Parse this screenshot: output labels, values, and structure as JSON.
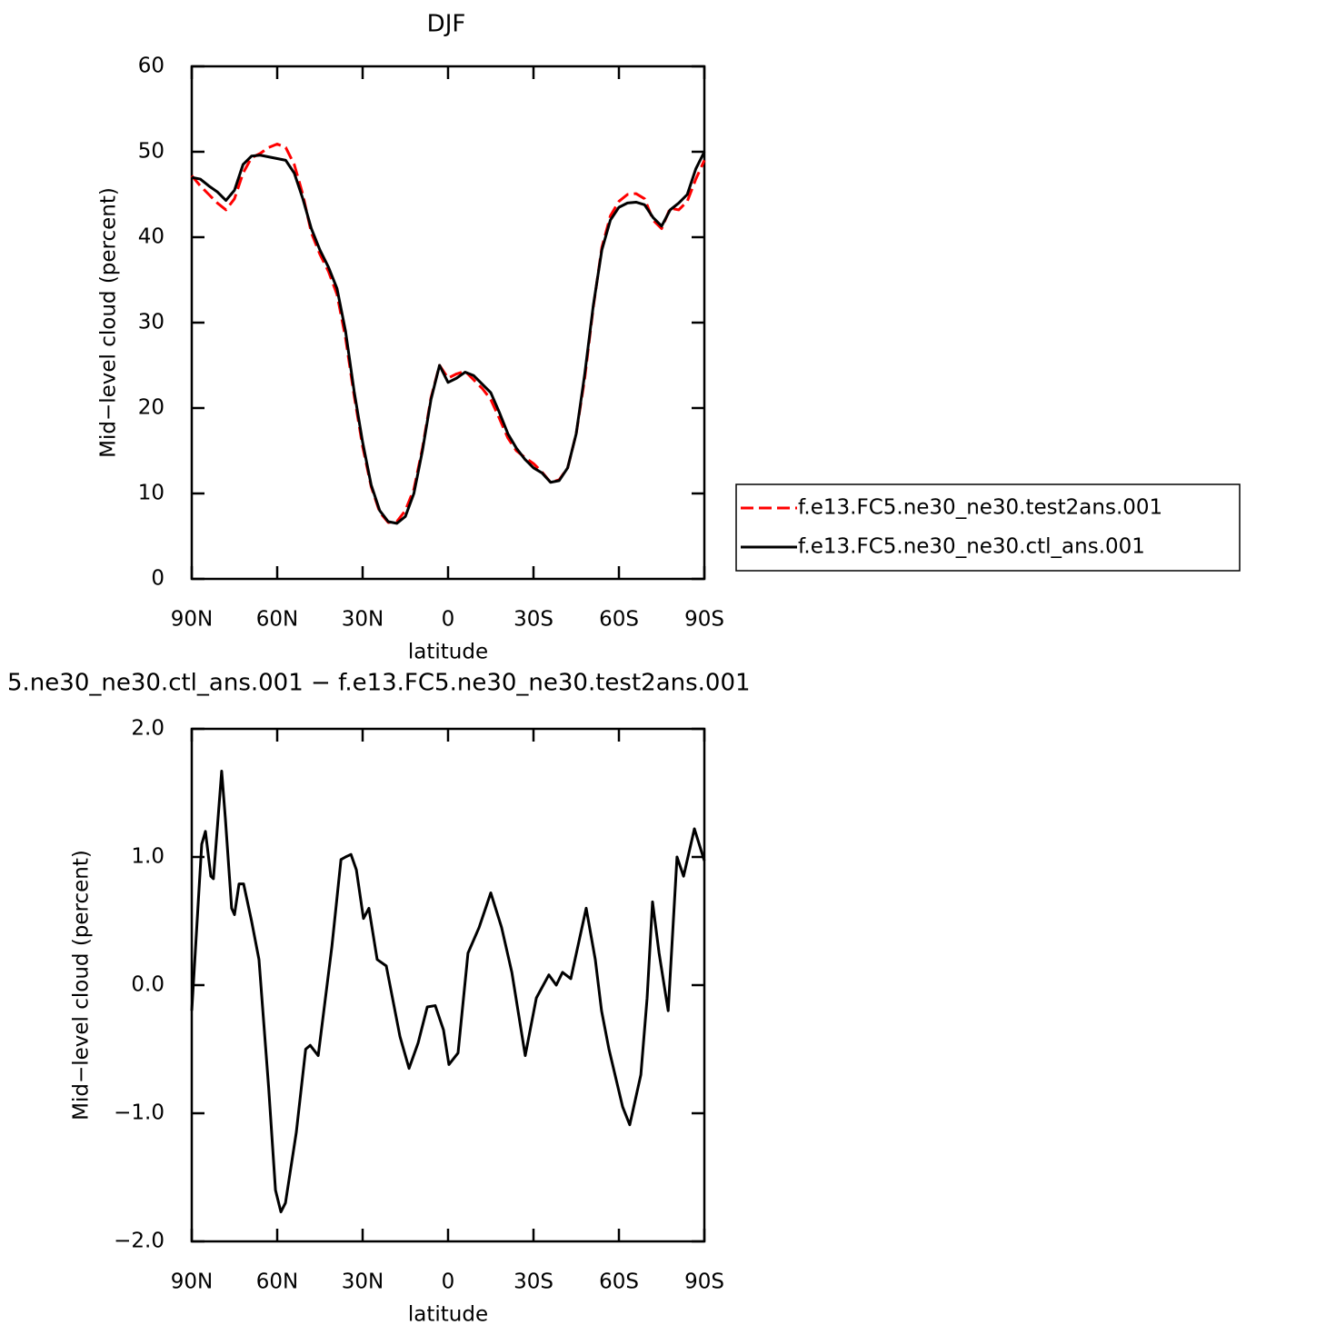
{
  "chart_data": [
    {
      "type": "line",
      "title": "DJF",
      "x_label": "latitude",
      "y_label": "Mid−level cloud (percent)",
      "x": [
        90,
        87,
        84,
        81,
        78,
        75,
        72,
        69,
        66,
        63,
        60,
        57,
        54,
        51,
        48,
        45,
        42,
        39,
        36,
        33,
        30,
        27,
        24,
        21,
        18,
        15,
        12,
        9,
        6,
        3,
        0,
        -3,
        -6,
        -9,
        -12,
        -15,
        -18,
        -21,
        -24,
        -27,
        -30,
        -33,
        -36,
        -39,
        -42,
        -45,
        -48,
        -51,
        -54,
        -57,
        -60,
        -63,
        -66,
        -69,
        -72,
        -75,
        -78,
        -81,
        -84,
        -87,
        -90
      ],
      "series": [
        {
          "name": "f.e13.FC5.ne30_ne30.test2ans.001",
          "color": "#ff0000",
          "dashed": true,
          "values": [
            47.2,
            46,
            45,
            44,
            43.2,
            44.5,
            47.5,
            49.3,
            49.8,
            50.5,
            50.9,
            50.5,
            48.5,
            45,
            40.5,
            38,
            36,
            33.3,
            28.2,
            21.5,
            15.5,
            10.8,
            7.8,
            6.6,
            6.7,
            8,
            10.5,
            15.3,
            21.2,
            25,
            23.5,
            24,
            24.3,
            23.3,
            22.3,
            21,
            18.8,
            16.5,
            15,
            14.2,
            13.5,
            12.5,
            11.3,
            11.6,
            13,
            17,
            23.5,
            31.8,
            38.8,
            42.5,
            44.2,
            45,
            45.1,
            44.5,
            42,
            41,
            43.4,
            43.2,
            44.2,
            46.8,
            49
          ]
        },
        {
          "name": "f.e13.FC5.ne30_ne30.ctl_ans.001",
          "color": "#000000",
          "dashed": false,
          "values": [
            47,
            46.8,
            46,
            45.3,
            44.3,
            45.5,
            48.5,
            49.5,
            49.6,
            49.4,
            49.2,
            49,
            47.5,
            44.5,
            41,
            38.5,
            36.5,
            34,
            29,
            22,
            16,
            11,
            8,
            6.7,
            6.5,
            7.3,
            10,
            15,
            21,
            25,
            23,
            23.5,
            24.2,
            23.8,
            22.8,
            21.8,
            19.5,
            17,
            15.3,
            14,
            13,
            12.4,
            11.3,
            11.5,
            13,
            17,
            24,
            32,
            38.5,
            42,
            43.5,
            44,
            44.1,
            43.8,
            42.3,
            41.3,
            43.2,
            44,
            45,
            48,
            50
          ]
        }
      ],
      "xlim": [
        90,
        -90
      ],
      "xticks": [
        {
          "value": 90,
          "label": "90N"
        },
        {
          "value": 60,
          "label": "60N"
        },
        {
          "value": 30,
          "label": "30N"
        },
        0,
        {
          "value": -30,
          "label": "30S"
        },
        {
          "value": -60,
          "label": "60S"
        },
        {
          "value": -90,
          "label": "90S"
        }
      ],
      "ylim": [
        0,
        60
      ],
      "yticks": [
        0,
        10,
        20,
        30,
        40,
        50,
        60
      ],
      "legend": "right"
    },
    {
      "type": "line",
      "title": "5.ne30_ne30.ctl_ans.001 − f.e13.FC5.ne30_ne30.test2ans.001",
      "x_label": "latitude",
      "y_label": "Mid−level cloud (percent)",
      "x": [
        90,
        86.5,
        85.2,
        83.3,
        82.4,
        79.5,
        78.2,
        76,
        75,
        73.4,
        71.8,
        69,
        66.4,
        63,
        60.6,
        58.7,
        57.1,
        53.3,
        50,
        48.4,
        45.6,
        40.8,
        37.6,
        36,
        34.1,
        32.2,
        29.7,
        27.8,
        24.9,
        21.7,
        16.9,
        13.7,
        10.5,
        7.3,
        4.5,
        1.6,
        -0.3,
        -3.5,
        -7,
        -10.9,
        -15,
        -18.8,
        -22.4,
        -27.1,
        -31,
        -35.4,
        -38,
        -40.2,
        -43.1,
        -48.5,
        -51.7,
        -53.9,
        -56.5,
        -61.3,
        -63.8,
        -67.7,
        -69.9,
        -71.8,
        -74.1,
        -77.3,
        -80.4,
        -82.7,
        -86.5,
        -90
      ],
      "values": [
        -0.2,
        1.1,
        1.2,
        0.85,
        0.83,
        1.67,
        1.3,
        0.6,
        0.55,
        0.79,
        0.79,
        0.5,
        0.2,
        -0.8,
        -1.6,
        -1.77,
        -1.7,
        -1.15,
        -0.5,
        -0.47,
        -0.55,
        0.3,
        0.98,
        1.0,
        1.02,
        0.9,
        0.52,
        0.6,
        0.2,
        0.15,
        -0.4,
        -0.65,
        -0.45,
        -0.17,
        -0.16,
        -0.35,
        -0.62,
        -0.53,
        0.25,
        0.45,
        0.72,
        0.45,
        0.1,
        -0.55,
        -0.1,
        0.08,
        0,
        0.1,
        0.05,
        0.6,
        0.2,
        -0.2,
        -0.5,
        -0.95,
        -1.09,
        -0.7,
        -0.1,
        0.65,
        0.25,
        -0.2,
        1.0,
        0.85,
        1.22,
        0.97
      ],
      "color": "#000000",
      "xlim": [
        90,
        -90
      ],
      "xticks": [
        {
          "value": 90,
          "label": "90N"
        },
        {
          "value": 60,
          "label": "60N"
        },
        {
          "value": 30,
          "label": "30N"
        },
        0,
        {
          "value": -30,
          "label": "30S"
        },
        {
          "value": -60,
          "label": "60S"
        },
        {
          "value": -90,
          "label": "90S"
        }
      ],
      "ylim": [
        -2,
        2
      ],
      "yticks": [
        {
          "value": -2,
          "label": "−2.0"
        },
        {
          "value": -1,
          "label": "−1.0"
        },
        {
          "value": 0,
          "label": "0.0"
        },
        {
          "value": 1,
          "label": "1.0"
        },
        {
          "value": 2,
          "label": "2.0"
        }
      ]
    }
  ]
}
